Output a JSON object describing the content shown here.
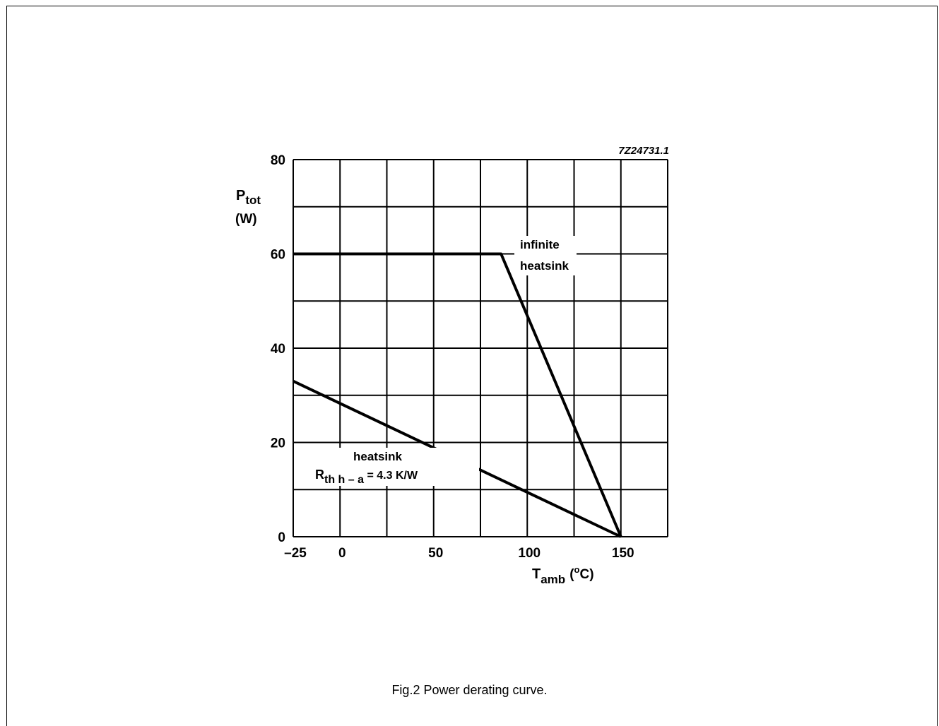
{
  "figure": {
    "code": "7Z24731.1",
    "caption": "Fig.2  Power derating curve."
  },
  "chart_data": {
    "type": "line",
    "xlabel": {
      "main": "T",
      "sub": "amb",
      "unit": "(°C)",
      "unit_pre": "(",
      "unit_sup": "o",
      "unit_post": "C)"
    },
    "ylabel": {
      "main": "P",
      "sub": "tot",
      "unit": "(W)"
    },
    "xlim": [
      -25,
      175
    ],
    "ylim": [
      0,
      80
    ],
    "x_ticks": [
      -25,
      0,
      50,
      100,
      150
    ],
    "y_ticks": [
      0,
      20,
      40,
      60,
      80
    ],
    "x_grid": [
      -25,
      0,
      25,
      50,
      75,
      100,
      125,
      150,
      175
    ],
    "y_grid": [
      0,
      10,
      20,
      30,
      40,
      50,
      60,
      70,
      80
    ],
    "grid": true,
    "series": [
      {
        "name": "infinite heatsink",
        "label_lines": [
          "infinite",
          "heatsink"
        ],
        "points": [
          [
            -25,
            60
          ],
          [
            86,
            60
          ],
          [
            150,
            0
          ]
        ]
      },
      {
        "name": "heatsink Rth h-a = 4.3 K/W",
        "label_line1": "heatsink",
        "label_line2": {
          "main": "R",
          "sub": "th h – a",
          "rest": " = 4.3 K/W"
        },
        "points": [
          [
            -25,
            33
          ],
          [
            150,
            0
          ]
        ]
      }
    ]
  }
}
